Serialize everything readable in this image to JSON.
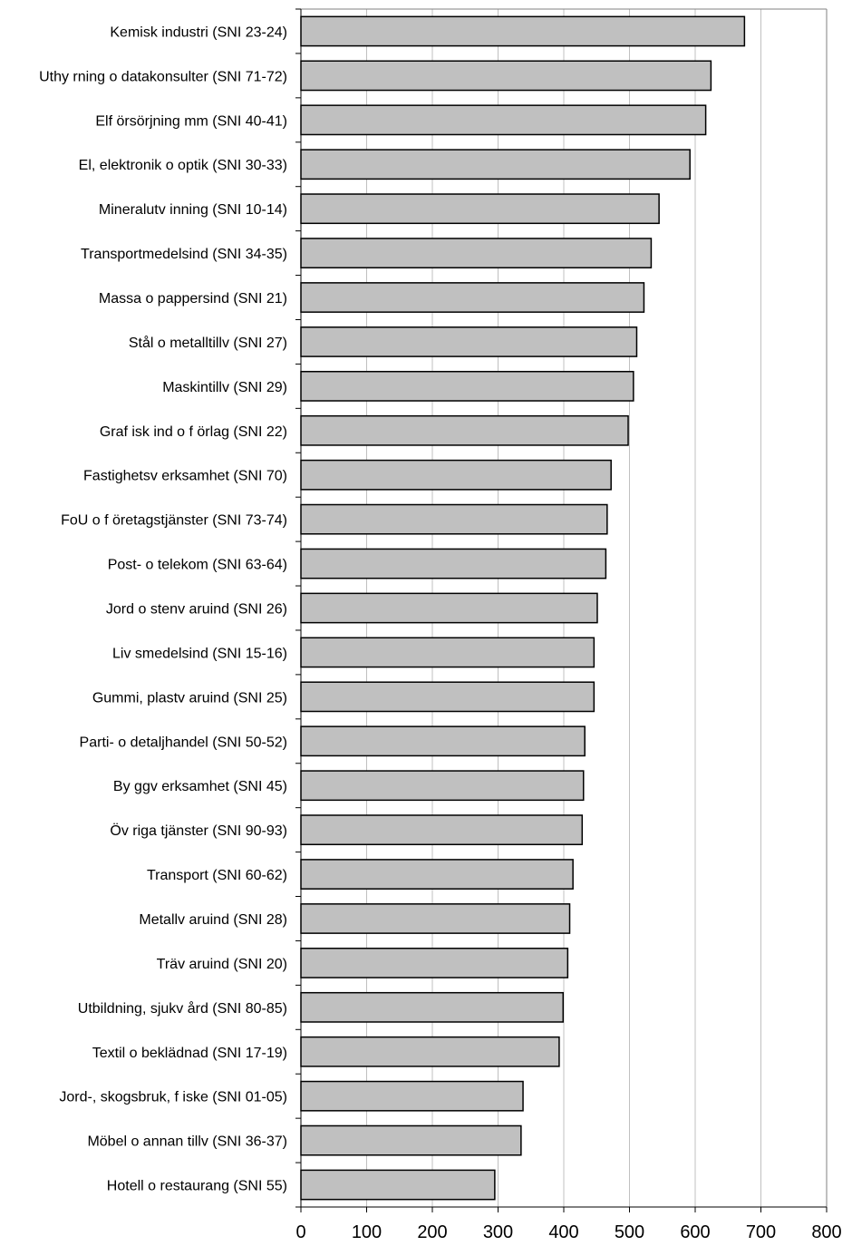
{
  "colors": {
    "bar_fill": "#c0c0c0",
    "bar_stroke": "#000000",
    "gridline": "#c0c0c0",
    "axis": "#808080",
    "background": "#ffffff"
  },
  "chart_data": {
    "type": "bar",
    "orientation": "horizontal",
    "title": "",
    "xlabel": "",
    "ylabel": "",
    "xlim": [
      0,
      800
    ],
    "x_ticks": [
      0,
      100,
      200,
      300,
      400,
      500,
      600,
      700,
      800
    ],
    "grid": "vertical major gridlines",
    "legend": "none",
    "categories": [
      "Kemisk industri (SNI 23-24)",
      "Uthy rning o datakonsulter (SNI 71-72)",
      "Elf örsörjning mm (SNI 40-41)",
      "El, elektronik o optik (SNI 30-33)",
      "Mineralutv inning (SNI 10-14)",
      "Transportmedelsind (SNI 34-35)",
      "Massa o pappersind (SNI 21)",
      "Stål o metalltillv (SNI 27)",
      "Maskintillv (SNI 29)",
      "Graf isk ind o f örlag (SNI 22)",
      "Fastighetsv erksamhet (SNI 70)",
      "FoU o f öretagstjänster (SNI 73-74)",
      "Post- o telekom (SNI 63-64)",
      "Jord o stenv aruind (SNI 26)",
      "Liv smedelsind (SNI 15-16)",
      "Gummi, plastv aruind (SNI 25)",
      "Parti- o detaljhandel (SNI 50-52)",
      "By ggv erksamhet (SNI 45)",
      "Öv riga tjänster (SNI 90-93)",
      "Transport (SNI 60-62)",
      "Metallv aruind (SNI 28)",
      "Träv aruind (SNI 20)",
      "Utbildning, sjukv ård (SNI 80-85)",
      "Textil o beklädnad (SNI 17-19)",
      "Jord-, skogsbruk, f iske (SNI 01-05)",
      "Möbel o annan tillv (SNI 36-37)",
      "Hotell o restaurang (SNI 55)"
    ],
    "values": [
      675,
      624,
      616,
      592,
      545,
      533,
      522,
      511,
      506,
      498,
      472,
      466,
      464,
      451,
      446,
      446,
      432,
      430,
      428,
      414,
      409,
      406,
      399,
      393,
      338,
      335,
      295
    ]
  }
}
